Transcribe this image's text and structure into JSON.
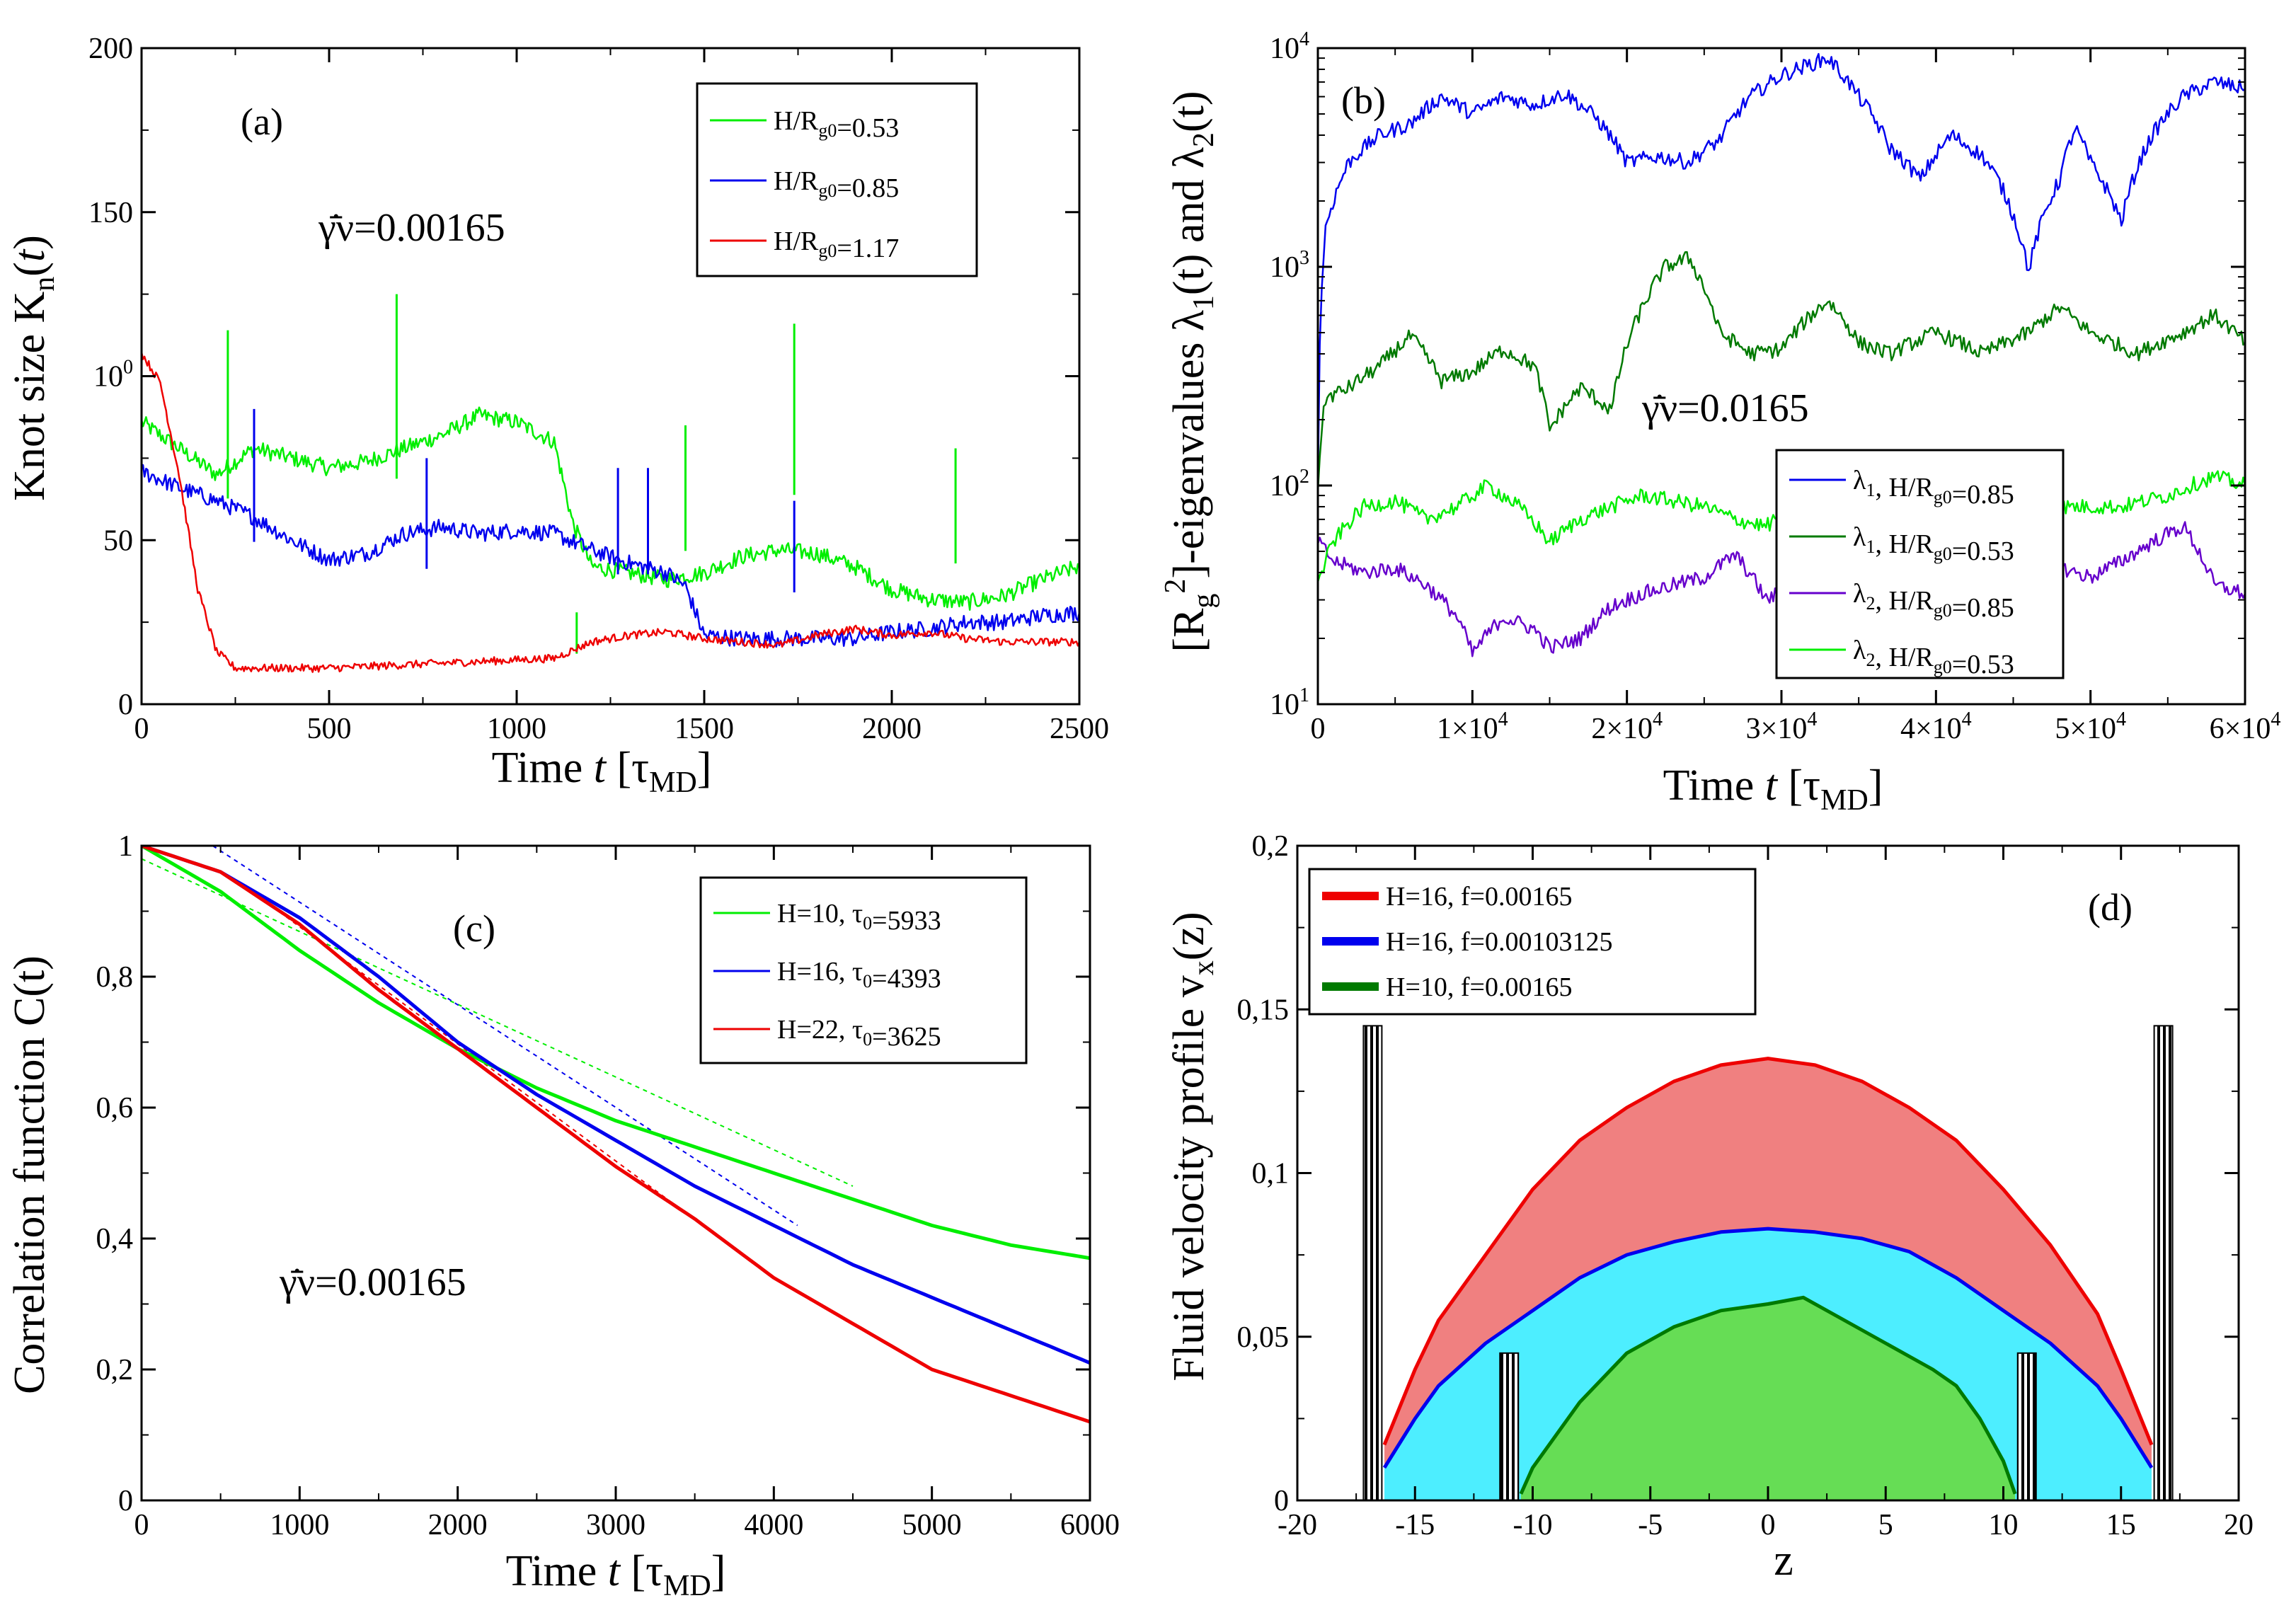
{
  "colors": {
    "green": "#00ee00",
    "blue": "#0000ee",
    "red": "#ee0000",
    "darkgreen": "#007a00",
    "purple": "#6600cc",
    "fill_red": "#f08080",
    "fill_cyan": "#4deeff",
    "fill_green": "#66dd55"
  },
  "chart_data": [
    {
      "type": "line",
      "panel": "(a)",
      "xlabel": "Time t [τMD]",
      "ylabel": "Knot size Kn(t)",
      "xlim": [
        0,
        2500
      ],
      "ylim": [
        0,
        200
      ],
      "x_ticks": [
        "0",
        "500",
        "1000",
        "1500",
        "2000",
        "2500"
      ],
      "y_ticks": [
        "0",
        "50",
        "100",
        "150",
        "200"
      ],
      "annotation": "γ̄̇ν=0.00165",
      "legend_position": "top-right",
      "series": [
        {
          "name": "H/Rg0=0.53",
          "color": "green",
          "x": [
            0,
            100,
            200,
            300,
            400,
            500,
            600,
            700,
            800,
            900,
            1000,
            1100,
            1150,
            1200,
            1300,
            1400,
            1500,
            1600,
            1700,
            1800,
            1900,
            2000,
            2100,
            2200,
            2300,
            2400,
            2500
          ],
          "y": [
            86,
            78,
            70,
            78,
            75,
            72,
            74,
            78,
            82,
            88,
            86,
            80,
            55,
            42,
            40,
            38,
            40,
            45,
            47,
            46,
            42,
            35,
            32,
            31,
            33,
            38,
            42
          ],
          "spikes": [
            [
              230,
              114
            ],
            [
              680,
              125
            ],
            [
              1160,
              28
            ],
            [
              1450,
              85
            ],
            [
              1740,
              116
            ],
            [
              2170,
              78
            ]
          ]
        },
        {
          "name": "H/Rg0=0.85",
          "color": "blue",
          "x": [
            0,
            100,
            200,
            300,
            400,
            500,
            600,
            700,
            800,
            900,
            1000,
            1100,
            1200,
            1300,
            1400,
            1450,
            1500,
            1600,
            1700,
            1800,
            1900,
            2000,
            2100,
            2200,
            2300,
            2400,
            2500
          ],
          "y": [
            71,
            66,
            62,
            57,
            50,
            44,
            46,
            52,
            54,
            52,
            53,
            52,
            47,
            43,
            40,
            36,
            21,
            20,
            20,
            20,
            20,
            22,
            23,
            25,
            25,
            27,
            28
          ],
          "spikes": [
            [
              300,
              90
            ],
            [
              760,
              75
            ],
            [
              1270,
              72
            ],
            [
              1350,
              72
            ],
            [
              1740,
              62
            ]
          ]
        },
        {
          "name": "H/Rg0=1.17",
          "color": "red",
          "x": [
            0,
            50,
            100,
            150,
            200,
            250,
            300,
            500,
            700,
            900,
            1100,
            1200,
            1300,
            1400,
            1500,
            1600,
            1700,
            1800,
            1900,
            2000,
            2100,
            2200,
            2300,
            2400,
            2500
          ],
          "y": [
            107,
            98,
            70,
            35,
            16,
            11,
            11,
            11,
            12,
            13,
            14,
            19,
            21,
            22,
            20,
            19,
            18,
            21,
            23,
            21,
            22,
            20,
            19,
            19,
            19
          ],
          "spikes": []
        }
      ]
    },
    {
      "type": "line",
      "panel": "(b)",
      "xlabel": "Time t [τMD]",
      "ylabel": "[Rg2]-eigenvalues λ1(t) and λ2(t)",
      "xlim": [
        0,
        60000
      ],
      "ylim": [
        10,
        10000
      ],
      "yscale": "log",
      "x_ticks": [
        "0",
        "1×104",
        "2×104",
        "3×104",
        "4×104",
        "5×104",
        "6×104"
      ],
      "y_ticks": [
        "101",
        "102",
        "103",
        "104"
      ],
      "annotation": "γ̄̇ν=0.0165",
      "legend_position": "bottom-right",
      "series": [
        {
          "name": "λ1, H/Rg0=0.85",
          "color": "blue",
          "x": [
            0,
            500,
            2000,
            4000,
            6000,
            8000,
            10000,
            12000,
            14000,
            16000,
            18000,
            20000,
            22000,
            24000,
            26000,
            28000,
            30000,
            33000,
            35000,
            37000,
            39000,
            41000,
            43000,
            44000,
            46000,
            48000,
            49000,
            50000,
            52000,
            54000,
            56000,
            58000,
            60000
          ],
          "y": [
            100,
            1500,
            3000,
            4000,
            4500,
            6000,
            5000,
            6000,
            5500,
            6200,
            4800,
            3000,
            3200,
            3000,
            3800,
            6000,
            7500,
            9000,
            6000,
            3500,
            2500,
            4000,
            3200,
            2500,
            950,
            2500,
            4300,
            3000,
            1600,
            4000,
            6000,
            7000,
            6500
          ]
        },
        {
          "name": "λ1, H/Rg0=0.53",
          "color": "darkgreen",
          "x": [
            0,
            500,
            2000,
            4000,
            6000,
            8000,
            10000,
            12000,
            14000,
            15000,
            17000,
            19000,
            21000,
            22500,
            24000,
            26000,
            28000,
            30000,
            33000,
            35000,
            37000,
            40000,
            43000,
            46000,
            48000,
            50000,
            53000,
            56000,
            58000,
            60000
          ],
          "y": [
            100,
            250,
            280,
            350,
            480,
            300,
            330,
            420,
            350,
            180,
            280,
            220,
            650,
            1000,
            1100,
            500,
            400,
            420,
            700,
            450,
            400,
            500,
            400,
            500,
            650,
            500,
            400,
            500,
            600,
            450
          ]
        },
        {
          "name": "λ2, H/Rg0=0.85",
          "color": "purple",
          "x": [
            0,
            1000,
            3000,
            5000,
            7000,
            9000,
            10000,
            12000,
            14000,
            15000,
            17000,
            19000,
            21000,
            23000,
            25000,
            27000,
            29000,
            31000,
            33000,
            35000,
            37000,
            40000,
            43000,
            46000,
            48000,
            50000,
            52000,
            54000,
            56000,
            58000,
            60000
          ],
          "y": [
            55,
            45,
            40,
            42,
            35,
            25,
            17,
            25,
            22,
            18,
            20,
            28,
            32,
            35,
            38,
            48,
            30,
            35,
            42,
            40,
            38,
            30,
            35,
            40,
            42,
            38,
            45,
            55,
            65,
            35,
            32
          ]
        },
        {
          "name": "λ2, H/Rg0=0.53",
          "color": "green",
          "x": [
            0,
            1000,
            3000,
            5000,
            7000,
            9000,
            11000,
            13000,
            15000,
            17000,
            19000,
            21000,
            23000,
            25000,
            27000,
            29000,
            31000,
            34000,
            37000,
            40000,
            43000,
            46000,
            49000,
            52000,
            55000,
            58000,
            60000
          ],
          "y": [
            35,
            55,
            80,
            85,
            70,
            80,
            100,
            80,
            55,
            70,
            80,
            90,
            85,
            80,
            70,
            65,
            80,
            75,
            70,
            75,
            70,
            80,
            80,
            80,
            90,
            110,
            100
          ]
        }
      ]
    },
    {
      "type": "line",
      "panel": "(c)",
      "xlabel": "Time t [τMD]",
      "ylabel": "Correlation function  C(t)",
      "xlim": [
        0,
        6000
      ],
      "ylim": [
        0,
        1
      ],
      "x_ticks": [
        "0",
        "1000",
        "2000",
        "3000",
        "4000",
        "5000",
        "6000"
      ],
      "y_ticks": [
        "0",
        "0,2",
        "0,4",
        "0,6",
        "0,8",
        "1"
      ],
      "annotation": "γ̄̇ν=0.00165",
      "legend_position": "top-right",
      "series": [
        {
          "name": "H=10, τ0=5933",
          "color": "green",
          "x": [
            0,
            500,
            1000,
            1500,
            2000,
            2500,
            3000,
            3500,
            4000,
            4500,
            5000,
            5500,
            6000
          ],
          "y": [
            1.0,
            0.93,
            0.84,
            0.76,
            0.69,
            0.63,
            0.58,
            0.54,
            0.5,
            0.46,
            0.42,
            0.39,
            0.37
          ]
        },
        {
          "name": "H=16, τ0=4393",
          "color": "blue",
          "x": [
            0,
            500,
            1000,
            1500,
            2000,
            2500,
            3000,
            3500,
            4000,
            4500,
            5000,
            5500,
            6000
          ],
          "y": [
            1.0,
            0.96,
            0.89,
            0.8,
            0.7,
            0.62,
            0.55,
            0.48,
            0.42,
            0.36,
            0.31,
            0.26,
            0.21
          ]
        },
        {
          "name": "H=22, τ0=3625",
          "color": "red",
          "x": [
            0,
            500,
            1000,
            1500,
            2000,
            2500,
            3000,
            3500,
            4000,
            4500,
            5000,
            5500,
            6000
          ],
          "y": [
            1.0,
            0.96,
            0.88,
            0.78,
            0.69,
            0.6,
            0.51,
            0.43,
            0.34,
            0.27,
            0.2,
            0.16,
            0.12
          ]
        }
      ],
      "fits": [
        {
          "color": "green",
          "x": [
            0,
            4500
          ],
          "y": [
            0.98,
            0.48
          ]
        },
        {
          "color": "blue",
          "x": [
            450,
            4150
          ],
          "y": [
            1.0,
            0.42
          ]
        },
        {
          "color": "red",
          "x": [
            700,
            3550
          ],
          "y": [
            0.93,
            0.42
          ]
        }
      ]
    },
    {
      "type": "area",
      "panel": "(d)",
      "xlabel": "z",
      "ylabel": "Fluid velocity profile vx(z)",
      "xlim": [
        -20,
        20
      ],
      "ylim": [
        0,
        0.2
      ],
      "x_ticks": [
        "-20",
        "-15",
        "-10",
        "-5",
        "0",
        "5",
        "10",
        "15",
        "20"
      ],
      "y_ticks": [
        "0",
        "0,05",
        "0,1",
        "0,15",
        "0,2"
      ],
      "legend_position": "top-left",
      "walls": [
        {
          "z": -16.8,
          "height": 0.145
        },
        {
          "z": -11.0,
          "height": 0.045
        },
        {
          "z": 11.0,
          "height": 0.045
        },
        {
          "z": 16.8,
          "height": 0.145
        }
      ],
      "series": [
        {
          "name": "H=16, f=0.00165",
          "color": "red",
          "fill": "fill_red",
          "x": [
            -16.3,
            -15,
            -14,
            -12,
            -10,
            -8,
            -6,
            -4,
            -2,
            0,
            2,
            4,
            6,
            8,
            10,
            12,
            14,
            15,
            16.3
          ],
          "y": [
            0.017,
            0.04,
            0.055,
            0.075,
            0.095,
            0.11,
            0.12,
            0.128,
            0.133,
            0.135,
            0.133,
            0.128,
            0.12,
            0.11,
            0.095,
            0.078,
            0.057,
            0.04,
            0.017
          ]
        },
        {
          "name": "H=16, f=0.00103125",
          "color": "blue",
          "fill": "fill_cyan",
          "x": [
            -16.3,
            -15,
            -14,
            -12,
            -10,
            -8,
            -6,
            -4,
            -2,
            0,
            2,
            4,
            6,
            8,
            10,
            12,
            14,
            15,
            16.3
          ],
          "y": [
            0.01,
            0.025,
            0.035,
            0.048,
            0.058,
            0.068,
            0.075,
            0.079,
            0.082,
            0.083,
            0.082,
            0.08,
            0.076,
            0.068,
            0.058,
            0.048,
            0.035,
            0.025,
            0.01
          ]
        },
        {
          "name": "H=10, f=0.00165",
          "color": "darkgreen",
          "fill": "fill_green",
          "x": [
            -10.5,
            -10,
            -8,
            -6,
            -4,
            -2,
            0,
            1.5,
            3,
            5,
            7,
            8,
            9,
            10,
            10.5
          ],
          "y": [
            0.002,
            0.01,
            0.03,
            0.045,
            0.053,
            0.058,
            0.06,
            0.062,
            0.056,
            0.048,
            0.04,
            0.035,
            0.025,
            0.012,
            0.002
          ]
        }
      ]
    }
  ]
}
